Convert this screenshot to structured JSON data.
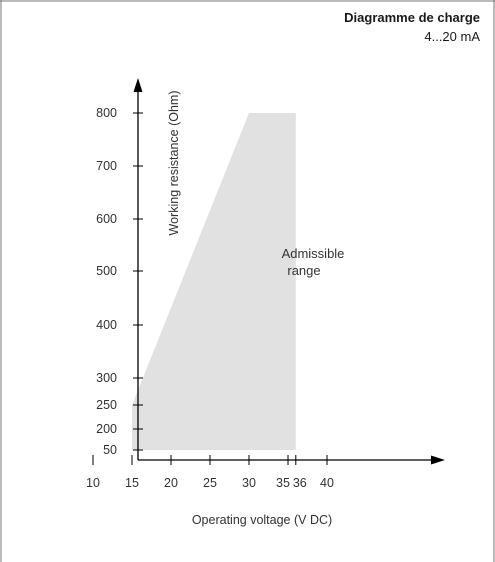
{
  "chart_data": {
    "type": "area",
    "title": "Diagramme de charge",
    "subtitle": "4...20 mA",
    "xlabel": "Operating voltage  (V DC)",
    "ylabel": "Working resistance  (Ohm)",
    "x_ticks": [
      10,
      15,
      20,
      25,
      30,
      35,
      36,
      40
    ],
    "y_ticks": [
      50,
      200,
      250,
      300,
      400,
      500,
      600,
      700,
      800
    ],
    "y_scale": "nonlinear (50 at axis origin)",
    "region": {
      "label_lines": [
        "Admissible",
        "range"
      ],
      "fill_color": "#e1e1e1",
      "points": [
        {
          "x": 15,
          "y": 50
        },
        {
          "x": 15,
          "y": 250
        },
        {
          "x": 30,
          "y": 800
        },
        {
          "x": 36,
          "y": 800
        },
        {
          "x": 36,
          "y": 50
        }
      ]
    },
    "grid": false,
    "legend": "none"
  }
}
